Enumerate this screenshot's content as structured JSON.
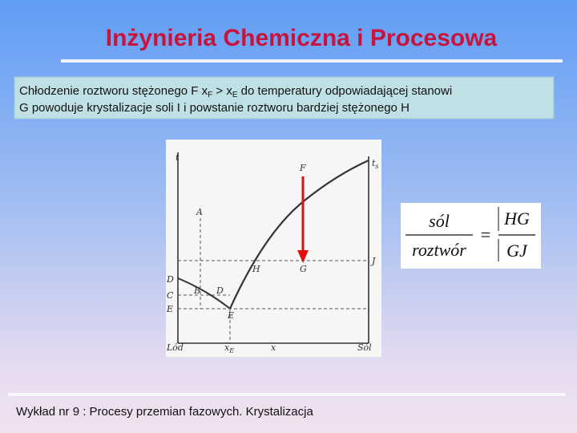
{
  "header": {
    "title": "Inżynieria Chemiczna i Procesowa"
  },
  "text_box": {
    "line1": [
      "Chłodzenie roztworu stężonego F x",
      "F",
      " > x",
      "E",
      "  do temperatury odpowiadającej stanowi"
    ],
    "line2": "G powoduje krystalizacje soli I i powstanie roztworu bardziej stężonego H"
  },
  "diagram": {
    "labels": [
      "t",
      "A",
      "D",
      "B",
      "D",
      "C",
      "E",
      "E",
      "F",
      "H",
      "G",
      "J",
      "t",
      "s",
      "Lód",
      "x",
      "E",
      "x",
      "Sól"
    ]
  },
  "formula": {
    "left_num": "sól",
    "left_den": "roztwór",
    "equals": "=",
    "right_num": "HG",
    "right_den": "GJ"
  },
  "footer": {
    "text": "Wykład nr 9  : Procesy przemian fazowych.  Krystalizacja"
  }
}
